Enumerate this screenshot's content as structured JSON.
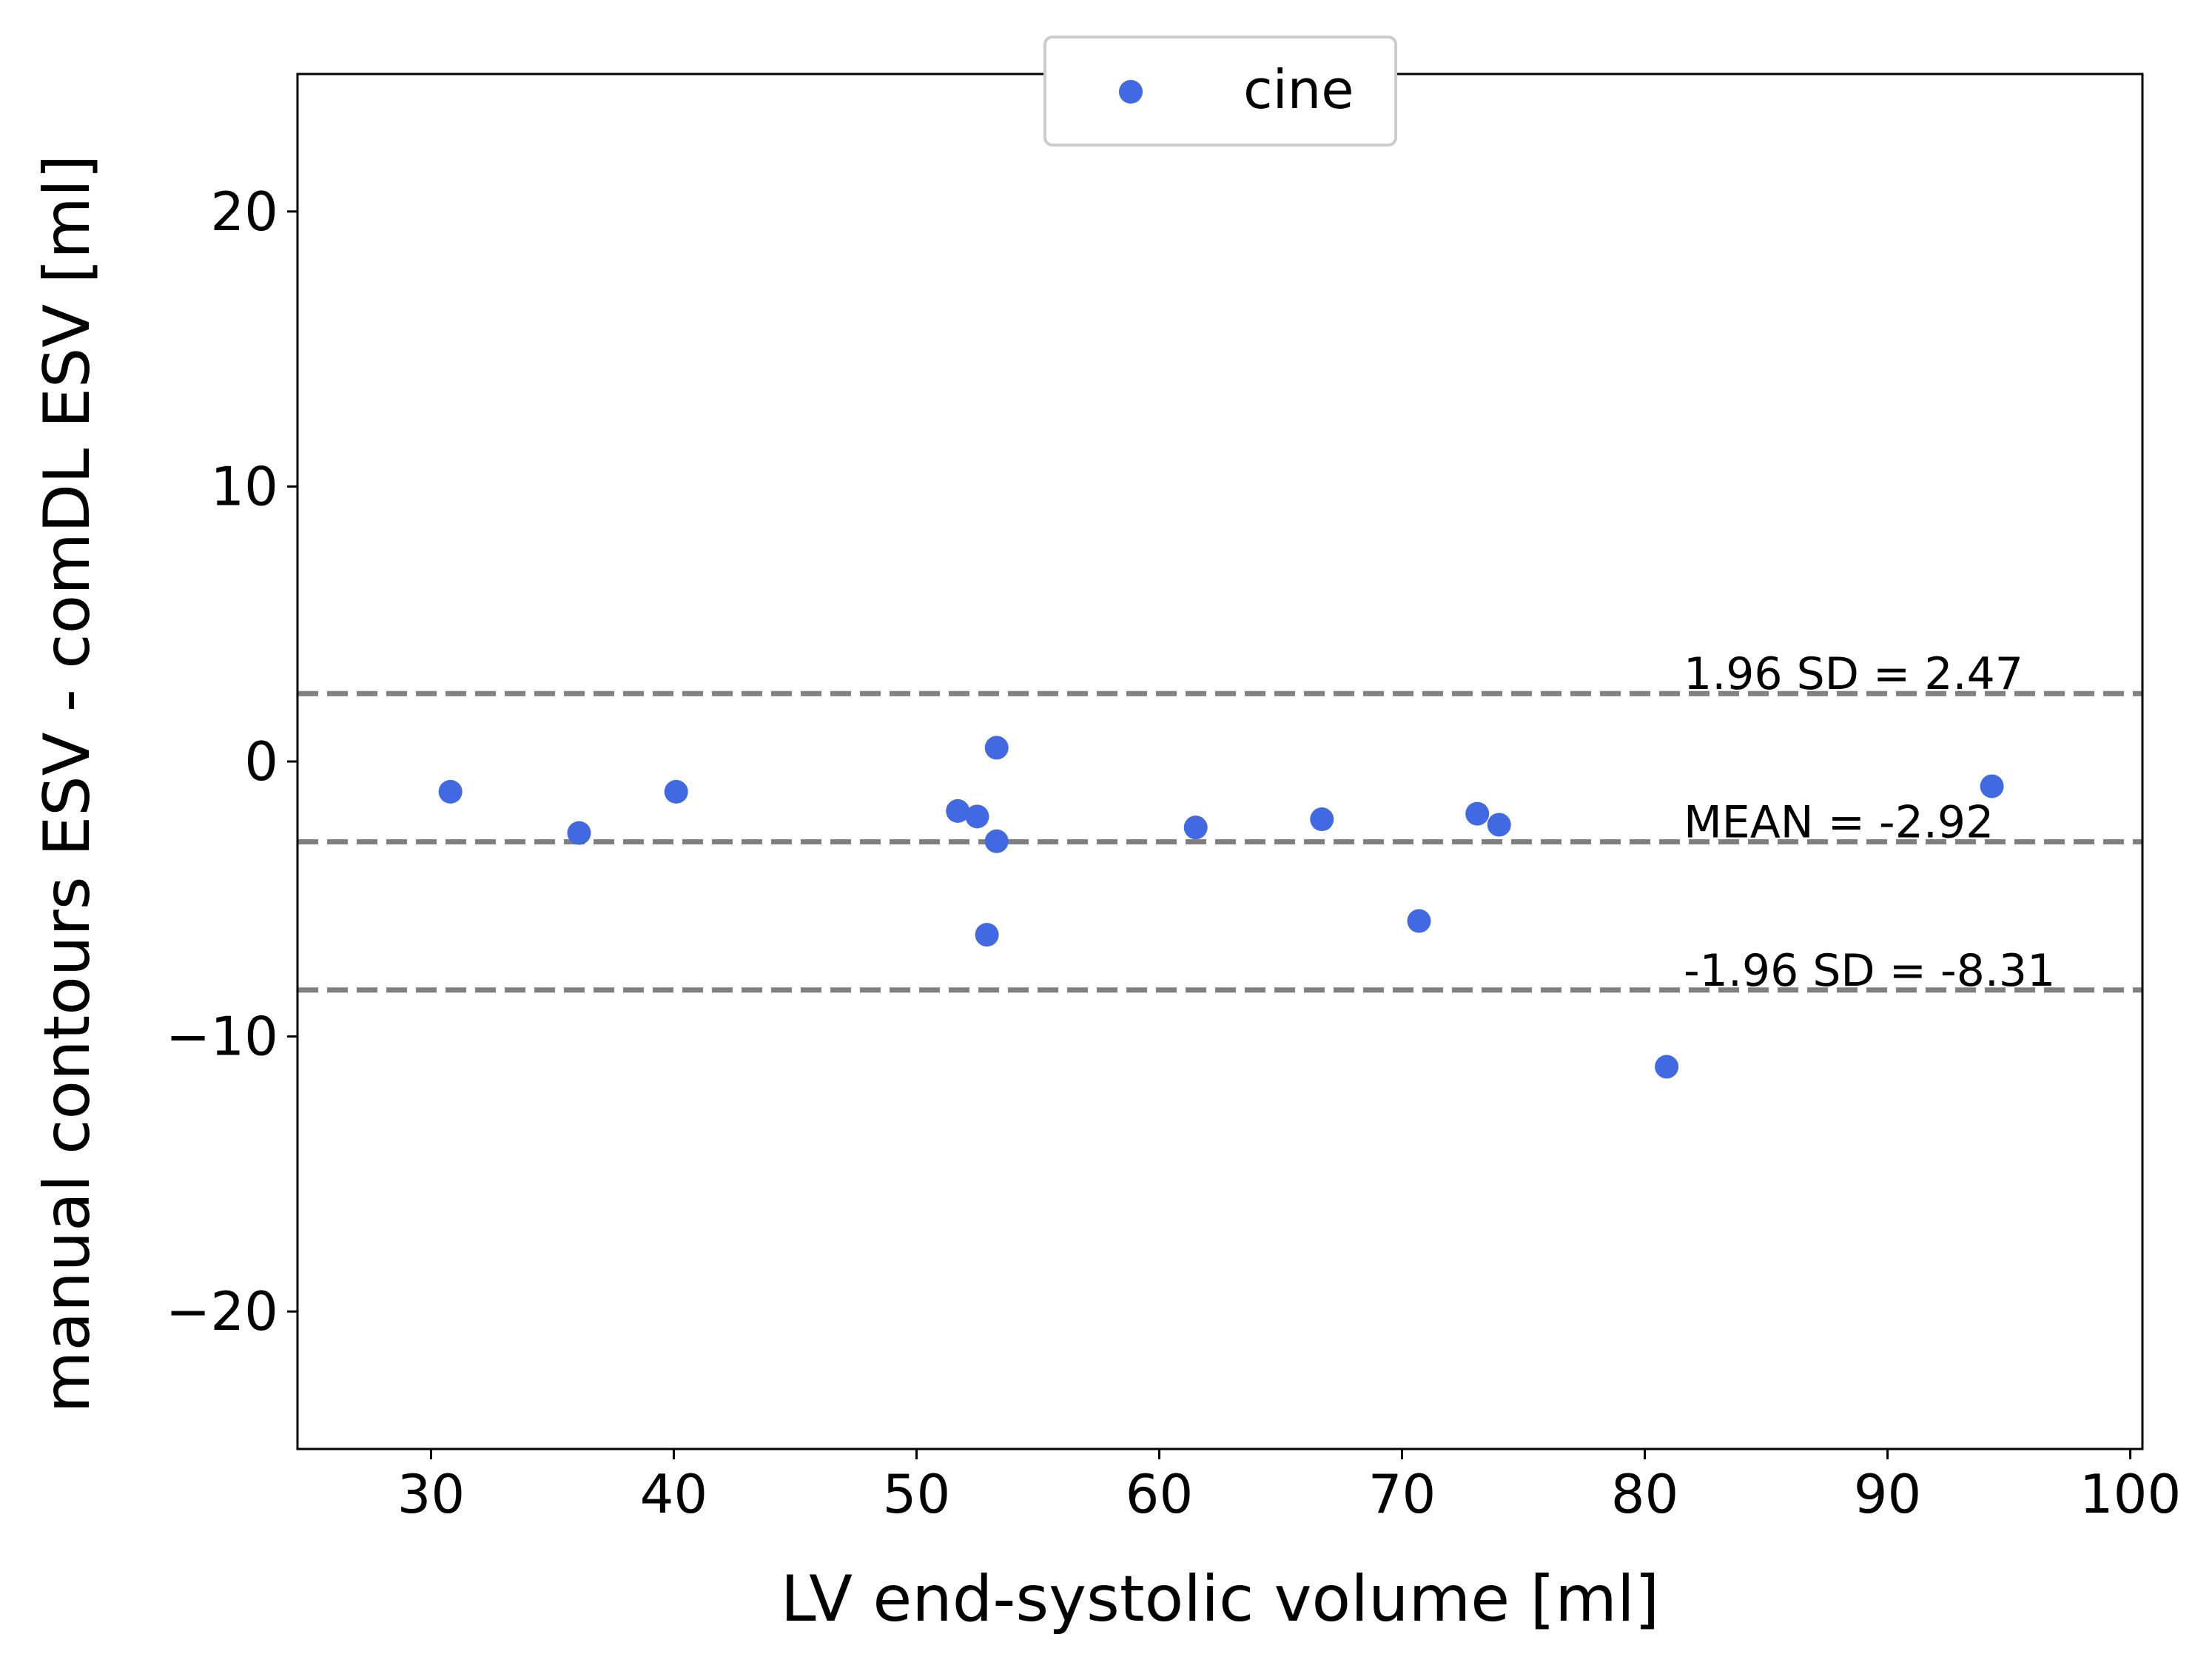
{
  "chart_data": {
    "type": "scatter",
    "title": "",
    "xlabel": "LV end-systolic volume [ml]",
    "ylabel": "manual contours ESV - comDL ESV [ml]",
    "xlim": [
      24.5,
      100.5
    ],
    "ylim": [
      -25,
      25
    ],
    "xticks": [
      30,
      40,
      50,
      60,
      70,
      80,
      90,
      100
    ],
    "xtick_labels": [
      "30",
      "40",
      "50",
      "60",
      "70",
      "80",
      "90",
      "100"
    ],
    "yticks": [
      20,
      10,
      0,
      -10,
      -20
    ],
    "ytick_labels": [
      "20",
      "10",
      "0",
      "−10",
      "−20"
    ],
    "grid": false,
    "legend": {
      "position": "upper center",
      "entries": [
        "cine"
      ]
    },
    "series": [
      {
        "name": "cine",
        "color": "#4169e1",
        "points": [
          {
            "x": 30.8,
            "y": -1.1
          },
          {
            "x": 36.1,
            "y": -2.6
          },
          {
            "x": 40.1,
            "y": -1.1
          },
          {
            "x": 51.7,
            "y": -1.8
          },
          {
            "x": 52.5,
            "y": -2.0
          },
          {
            "x": 52.9,
            "y": -6.3
          },
          {
            "x": 53.3,
            "y": 0.5
          },
          {
            "x": 53.3,
            "y": -2.9
          },
          {
            "x": 61.5,
            "y": -2.4
          },
          {
            "x": 66.7,
            "y": -2.1
          },
          {
            "x": 70.7,
            "y": -5.8
          },
          {
            "x": 73.1,
            "y": -1.9
          },
          {
            "x": 74.0,
            "y": -2.3
          },
          {
            "x": 80.9,
            "y": -11.1
          },
          {
            "x": 94.3,
            "y": -0.9
          }
        ]
      }
    ],
    "reference_lines": [
      {
        "y": 2.47,
        "label": "1.96 SD = 2.47",
        "color": "#808080",
        "style": "dashed"
      },
      {
        "y": -2.92,
        "label": "MEAN = -2.92",
        "color": "#808080",
        "style": "dashed"
      },
      {
        "y": -8.31,
        "label": "-1.96 SD = -8.31",
        "color": "#808080",
        "style": "dashed"
      }
    ],
    "annotation_label_x": 81.6
  }
}
